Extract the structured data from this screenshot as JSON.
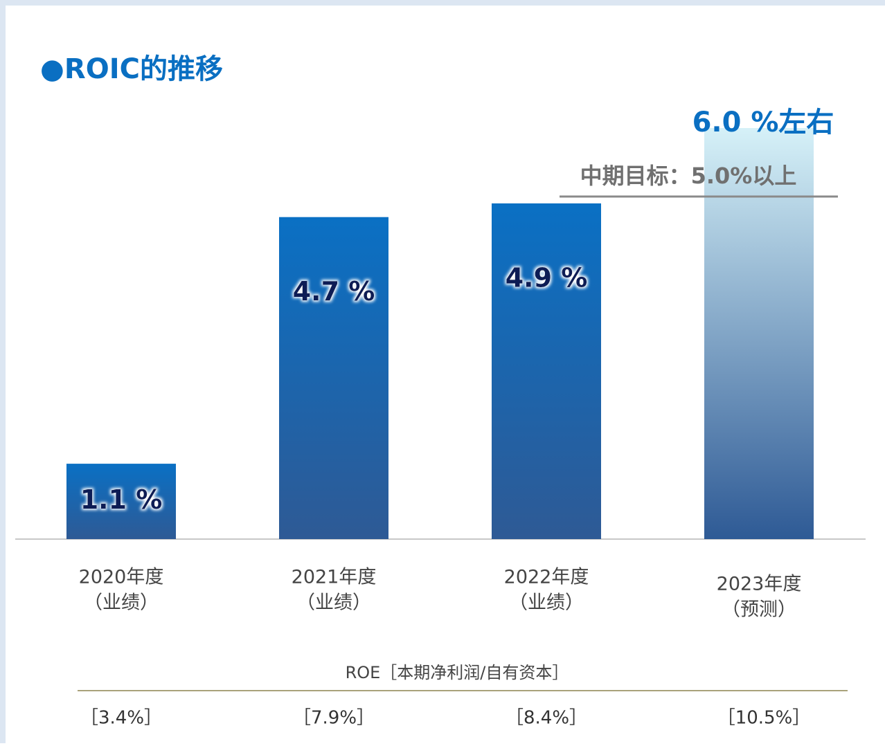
{
  "chart_data": {
    "type": "bar",
    "title": "●ROIC的推移",
    "categories": [
      [
        "2020年度",
        "（业绩）"
      ],
      [
        "2021年度",
        "（业绩）"
      ],
      [
        "2022年度",
        "（业绩）"
      ],
      [
        "2023年度",
        "（预测）"
      ]
    ],
    "values": [
      1.1,
      4.7,
      4.9,
      6.0
    ],
    "value_labels": [
      "1.1 %",
      "4.7 %",
      "4.9 %",
      "6.0 %左右"
    ],
    "colors": [
      "#0a70c4",
      "#0a70c4",
      "#0a70c4",
      "#d6f1f8"
    ],
    "ylim": [
      0,
      6
    ],
    "target": {
      "value": 5.0,
      "label": "中期目标：5.0%以上"
    },
    "roe": {
      "title": "ROE［本期净利润/自有资本］",
      "labels": [
        "［3.4%］",
        "［7.9%］",
        "［8.4%］",
        "［10.5%］"
      ]
    }
  }
}
